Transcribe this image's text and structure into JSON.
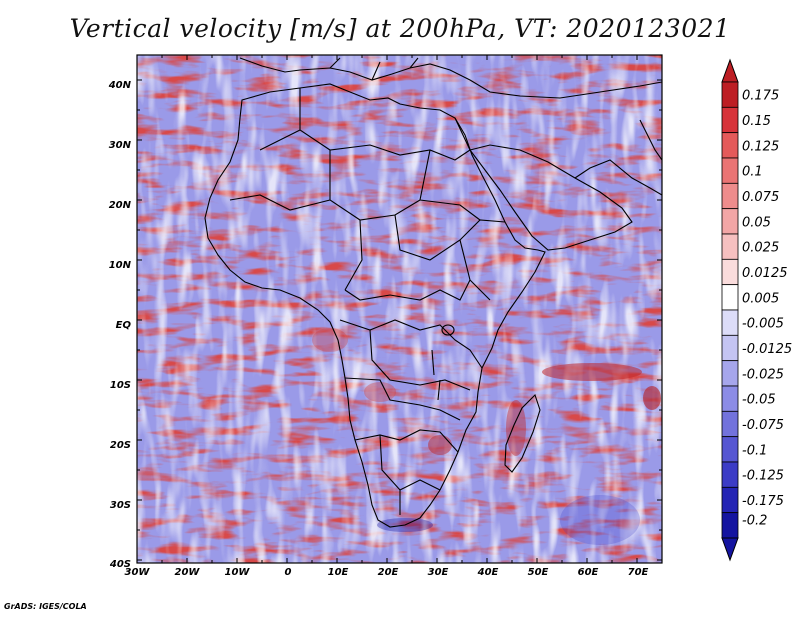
{
  "title": "Vertical velocity [m/s] at 200hPa, VT: 2020123021",
  "credit": "GrADS: IGES/COLA",
  "map": {
    "lon_labels": [
      "30W",
      "20W",
      "10W",
      "0",
      "10E",
      "20E",
      "30E",
      "40E",
      "50E",
      "60E",
      "70E"
    ],
    "lat_labels": [
      "40N",
      "30N",
      "20N",
      "10N",
      "EQ",
      "10S",
      "20S",
      "30S",
      "40S"
    ]
  },
  "colorbar": {
    "labels": [
      "0.175",
      "0.15",
      "0.125",
      "0.1",
      "0.075",
      "0.05",
      "0.025",
      "0.0125",
      "0.005",
      "-0.005",
      "-0.0125",
      "-0.025",
      "-0.05",
      "-0.075",
      "-0.1",
      "-0.125",
      "-0.175",
      "-0.2"
    ],
    "colors": [
      "#bd1e24",
      "#d7333a",
      "#e45a5a",
      "#ea7474",
      "#ee8c8c",
      "#f2a6a6",
      "#f6c0c0",
      "#fadcdc",
      "#ffffff",
      "#dcdcf8",
      "#c4c4f2",
      "#a6a6ec",
      "#8c8ce6",
      "#7272dc",
      "#5656d2",
      "#3c3cc6",
      "#2424b4",
      "#1414a0"
    ]
  }
}
